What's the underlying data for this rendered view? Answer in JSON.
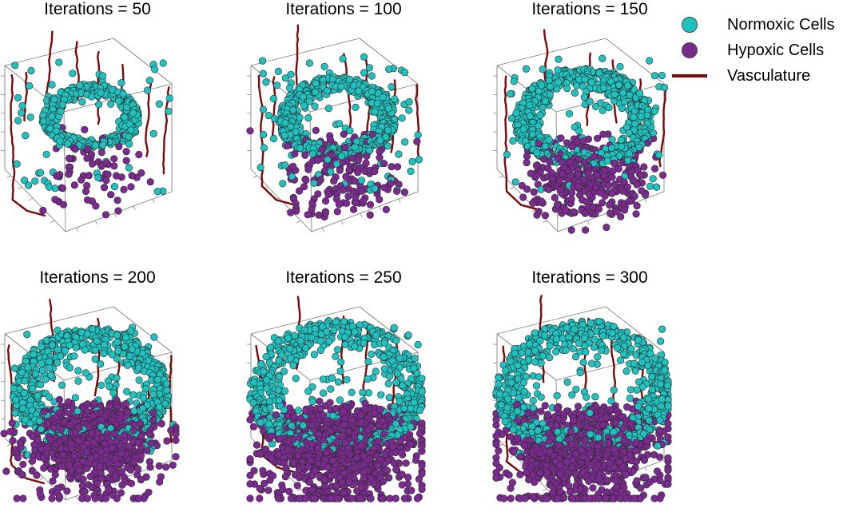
{
  "colors": {
    "normoxic": "#20c2c0",
    "hypoxic": "#7b2b8f",
    "vasculature": "#7a0a0a",
    "cell_edge": "#2a2a2a",
    "box": "#777777"
  },
  "legend": {
    "placement": "top-right",
    "items": [
      {
        "label": "Normoxic Cells",
        "kind": "normoxic"
      },
      {
        "label": "Hypoxic Cells",
        "kind": "hypoxic"
      },
      {
        "label": "Vasculature",
        "kind": "vasculature"
      }
    ]
  },
  "chart_data": [
    {
      "type": "scatter",
      "projection": "3d",
      "title": "Iterations = 50",
      "iterations": 50,
      "series": [
        {
          "name": "Normoxic Cells",
          "count": 420
        },
        {
          "name": "Hypoxic Cells",
          "count": 70
        },
        {
          "name": "Vasculature",
          "count": 8
        }
      ],
      "grid": false
    },
    {
      "type": "scatter",
      "projection": "3d",
      "title": "Iterations = 100",
      "iterations": 100,
      "series": [
        {
          "name": "Normoxic Cells",
          "count": 650
        },
        {
          "name": "Hypoxic Cells",
          "count": 170
        },
        {
          "name": "Vasculature",
          "count": 7
        }
      ],
      "grid": false
    },
    {
      "type": "scatter",
      "projection": "3d",
      "title": "Iterations = 150",
      "iterations": 150,
      "series": [
        {
          "name": "Normoxic Cells",
          "count": 780
        },
        {
          "name": "Hypoxic Cells",
          "count": 330
        },
        {
          "name": "Vasculature",
          "count": 6
        }
      ],
      "grid": false
    },
    {
      "type": "scatter",
      "projection": "3d",
      "title": "Iterations = 200",
      "iterations": 200,
      "series": [
        {
          "name": "Normoxic Cells",
          "count": 820
        },
        {
          "name": "Hypoxic Cells",
          "count": 820
        },
        {
          "name": "Vasculature",
          "count": 6
        }
      ],
      "grid": false
    },
    {
      "type": "scatter",
      "projection": "3d",
      "title": "Iterations = 250",
      "iterations": 250,
      "series": [
        {
          "name": "Normoxic Cells",
          "count": 760
        },
        {
          "name": "Hypoxic Cells",
          "count": 1000
        },
        {
          "name": "Vasculature",
          "count": 5
        }
      ],
      "grid": false
    },
    {
      "type": "scatter",
      "projection": "3d",
      "title": "Iterations = 300",
      "iterations": 300,
      "series": [
        {
          "name": "Normoxic Cells",
          "count": 760
        },
        {
          "name": "Hypoxic Cells",
          "count": 1050
        },
        {
          "name": "Vasculature",
          "count": 5
        }
      ],
      "grid": false
    }
  ]
}
